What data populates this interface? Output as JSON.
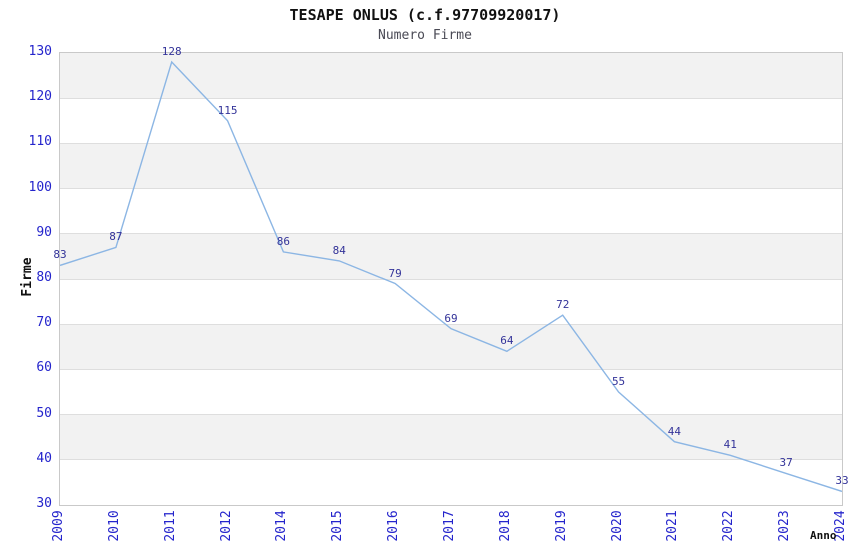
{
  "header": {
    "title": "TESAPE ONLUS (c.f.97709920017)",
    "subtitle": "Numero Firme"
  },
  "axes": {
    "y_label": "Firme",
    "x_label": "Anno"
  },
  "chart_data": {
    "type": "line",
    "title": "TESAPE ONLUS (c.f.97709920017)",
    "subtitle": "Numero Firme",
    "xlabel": "Anno",
    "ylabel": "Firme",
    "categories": [
      "2009",
      "2010",
      "2011",
      "2012",
      "2014",
      "2015",
      "2016",
      "2017",
      "2018",
      "2019",
      "2020",
      "2021",
      "2022",
      "2023",
      "2024"
    ],
    "values": [
      83,
      87,
      128,
      115,
      86,
      84,
      79,
      69,
      64,
      72,
      55,
      44,
      41,
      37,
      33
    ],
    "ylim": [
      30,
      130
    ],
    "ytick_interval": 10,
    "yticks": [
      130,
      120,
      110,
      100,
      90,
      80,
      70,
      60,
      50,
      40,
      30
    ],
    "grid": "horizontal-only",
    "banded_rows": true,
    "point_labels_shown": true,
    "legend": "none",
    "colors": {
      "line": "#8cb6e4",
      "point_label": "#333399",
      "tick_label": "#2424cc",
      "band_gray": "#f2f2f2",
      "band_white": "#ffffff",
      "gridline": "#dedede",
      "plot_border": "#c9c9c9",
      "title": "#111111",
      "subtitle": "#4a4a55",
      "axis_label": "#111111"
    }
  }
}
